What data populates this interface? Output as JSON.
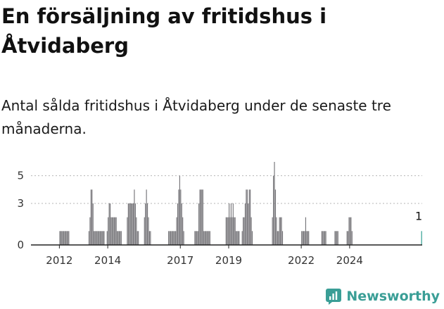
{
  "title": "En försäljning av fritidshus i Åtvidaberg",
  "subtitle": "Antal sålda fritidshus i Åtvidaberg under de senaste tre månaderna.",
  "brand": {
    "name": "Newsworthy",
    "logo_icon": "newsworthy-logo-icon",
    "color": "#3a9e96"
  },
  "chart_data": {
    "type": "bar",
    "title": "En försäljning av fritidshus i Åtvidaberg",
    "subtitle": "Antal sålda fritidshus i Åtvidaberg under de senaste tre månaderna.",
    "xlabel": "",
    "ylabel": "",
    "ylim": [
      0,
      6
    ],
    "yticks": [
      0,
      3,
      5
    ],
    "xticks": [
      "2012",
      "2014",
      "2017",
      "2019",
      "2022",
      "2024"
    ],
    "grid": "horizontal",
    "bar_color": "#77767a",
    "highlight_color": "#2a9d8f",
    "annotation": {
      "label": "1",
      "target": "last"
    },
    "series": [
      {
        "values": [
          0,
          0,
          0,
          0,
          0,
          0,
          0,
          0,
          0,
          0,
          0,
          0,
          0,
          0,
          0,
          0,
          0,
          0,
          0,
          0,
          0,
          0,
          0,
          0,
          1,
          1,
          1,
          1,
          1,
          1,
          1,
          1,
          1,
          1,
          0,
          0,
          0,
          0,
          0,
          0,
          0,
          0,
          0,
          0,
          0,
          0,
          0,
          0,
          0,
          0,
          0,
          0,
          0,
          1,
          2,
          4,
          4,
          3,
          1,
          1,
          1,
          1,
          1,
          1,
          1,
          1,
          1,
          1,
          1,
          0,
          0,
          1,
          2,
          3,
          3,
          2,
          2,
          2,
          2,
          2,
          2,
          1,
          1,
          1,
          1,
          1,
          0,
          0,
          0,
          0,
          0,
          2,
          3,
          3,
          3,
          3,
          3,
          3,
          4,
          3,
          2,
          1,
          1,
          0,
          0,
          0,
          0,
          0,
          2,
          3,
          4,
          3,
          2,
          1,
          1,
          0,
          0,
          0,
          0,
          0,
          0,
          0,
          0,
          0,
          0,
          0,
          0,
          0,
          0,
          0,
          0,
          0,
          1,
          1,
          1,
          1,
          1,
          1,
          1,
          1,
          2,
          3,
          4,
          5,
          4,
          3,
          2,
          1,
          0,
          0,
          0,
          0,
          0,
          0,
          0,
          0,
          0,
          0,
          1,
          1,
          1,
          1,
          3,
          4,
          4,
          4,
          4,
          1,
          1,
          1,
          1,
          1,
          1,
          1,
          0,
          0,
          0,
          0,
          0,
          0,
          0,
          0,
          0,
          0,
          0,
          0,
          0,
          0,
          0,
          2,
          2,
          2,
          3,
          2,
          3,
          2,
          3,
          2,
          2,
          1,
          1,
          1,
          1,
          0,
          0,
          1,
          2,
          2,
          3,
          4,
          4,
          3,
          4,
          4,
          2,
          1,
          0,
          0,
          0,
          0,
          0,
          0,
          0,
          0,
          0,
          0,
          0,
          0,
          0,
          0,
          0,
          0,
          0,
          0,
          0,
          2,
          5,
          6,
          4,
          2,
          1,
          1,
          2,
          2,
          2,
          1,
          0,
          0,
          0,
          0,
          0,
          0,
          0,
          0,
          0,
          0,
          0,
          0,
          0,
          0,
          0,
          0,
          0,
          0,
          1,
          1,
          1,
          1,
          2,
          1,
          1,
          1,
          0,
          0,
          0,
          0,
          0,
          0,
          0,
          0,
          0,
          0,
          0,
          0,
          1,
          1,
          1,
          1,
          1,
          0,
          0,
          0,
          0,
          0,
          0,
          0,
          0,
          1,
          1,
          1,
          1,
          0,
          0,
          0,
          0,
          0,
          0,
          0,
          0,
          1,
          1,
          2,
          2,
          2,
          1,
          0,
          0,
          0,
          0,
          0,
          0,
          0,
          0,
          0,
          0,
          0,
          0,
          0,
          0,
          0,
          0,
          0,
          0,
          0,
          0,
          0,
          0,
          0,
          0,
          0,
          0,
          0,
          0,
          0,
          0,
          0,
          0,
          0,
          0,
          0,
          0,
          0,
          0,
          0,
          0,
          0,
          0,
          0,
          0,
          0,
          0,
          0,
          0,
          0,
          0,
          0,
          0,
          0,
          0,
          0,
          0,
          0,
          0,
          0,
          0,
          0,
          0,
          0,
          0,
          0,
          0,
          0,
          0,
          1
        ]
      }
    ]
  }
}
